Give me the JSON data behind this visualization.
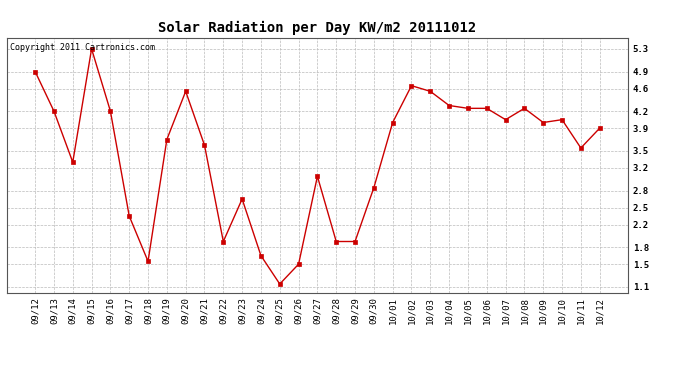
{
  "title": "Solar Radiation per Day KW/m2 20111012",
  "copyright": "Copyright 2011 Cartronics.com",
  "x_labels": [
    "09/12",
    "09/13",
    "09/14",
    "09/15",
    "09/16",
    "09/17",
    "09/18",
    "09/19",
    "09/20",
    "09/21",
    "09/22",
    "09/23",
    "09/24",
    "09/25",
    "09/26",
    "09/27",
    "09/28",
    "09/29",
    "09/30",
    "10/01",
    "10/02",
    "10/03",
    "10/04",
    "10/05",
    "10/06",
    "10/07",
    "10/08",
    "10/09",
    "10/10",
    "10/11",
    "10/12"
  ],
  "y_values": [
    4.9,
    4.2,
    3.3,
    5.3,
    4.2,
    2.35,
    1.55,
    3.7,
    4.55,
    3.6,
    1.9,
    2.65,
    1.65,
    1.15,
    1.5,
    3.05,
    1.9,
    1.9,
    2.85,
    4.0,
    4.65,
    4.55,
    4.3,
    4.25,
    4.25,
    4.05,
    4.25,
    4.0,
    4.05,
    3.55,
    3.9
  ],
  "line_color": "#cc0000",
  "marker": "s",
  "marker_color": "#cc0000",
  "marker_size": 2.5,
  "bg_color": "#ffffff",
  "plot_bg_color": "#ffffff",
  "grid_color": "#bbbbbb",
  "title_fontsize": 10,
  "copyright_fontsize": 6,
  "tick_fontsize": 6.5,
  "ylim": [
    1.0,
    5.5
  ],
  "yticks": [
    1.1,
    1.5,
    1.8,
    2.2,
    2.5,
    2.8,
    3.2,
    3.5,
    3.9,
    4.2,
    4.6,
    4.9,
    5.3
  ]
}
